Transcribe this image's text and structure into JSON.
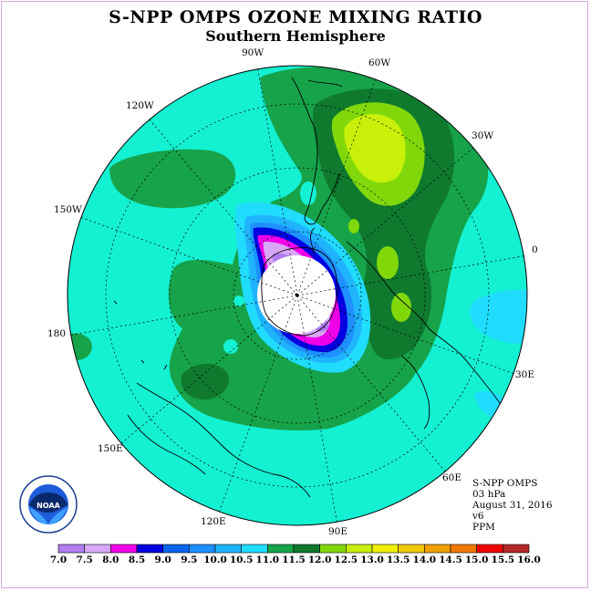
{
  "title": "S-NPP OMPS OZONE MIXING RATIO",
  "subtitle": "Southern Hemisphere",
  "longitude_labels": {
    "lon_90w": "90W",
    "lon_60w": "60W",
    "lon_120w": "120W",
    "lon_30w": "30W",
    "lon_150w": "150W",
    "lon_0": "0",
    "lon_180": "180",
    "lon_30e": "30E",
    "lon_150e": "150E",
    "lon_60e": "60E",
    "lon_120e": "120E",
    "lon_90e": "90E"
  },
  "info": {
    "instrument": "S-NPP OMPS",
    "level": "03 hPa",
    "date": "August 31, 2016",
    "version": "v6",
    "unit": "PPM"
  },
  "logo_text": "NOAA",
  "colorbar": {
    "labels": [
      "7.0",
      "7.5",
      "8.0",
      "8.5",
      "9.0",
      "9.5",
      "10.0",
      "10.5",
      "11.0",
      "11.5",
      "12.0",
      "12.5",
      "13.0",
      "13.5",
      "14.0",
      "14.5",
      "15.0",
      "15.5",
      "16.0"
    ],
    "colors": [
      "#b07cf0",
      "#d8a8f8",
      "#f000e8",
      "#0000e0",
      "#0a64f0",
      "#1e90ff",
      "#20b4ff",
      "#20dcff",
      "#16a34a",
      "#0f7a2e",
      "#80d80a",
      "#c8f00a",
      "#f0f000",
      "#f0c800",
      "#f0a000",
      "#f07800",
      "#f00000",
      "#b42828"
    ]
  }
}
